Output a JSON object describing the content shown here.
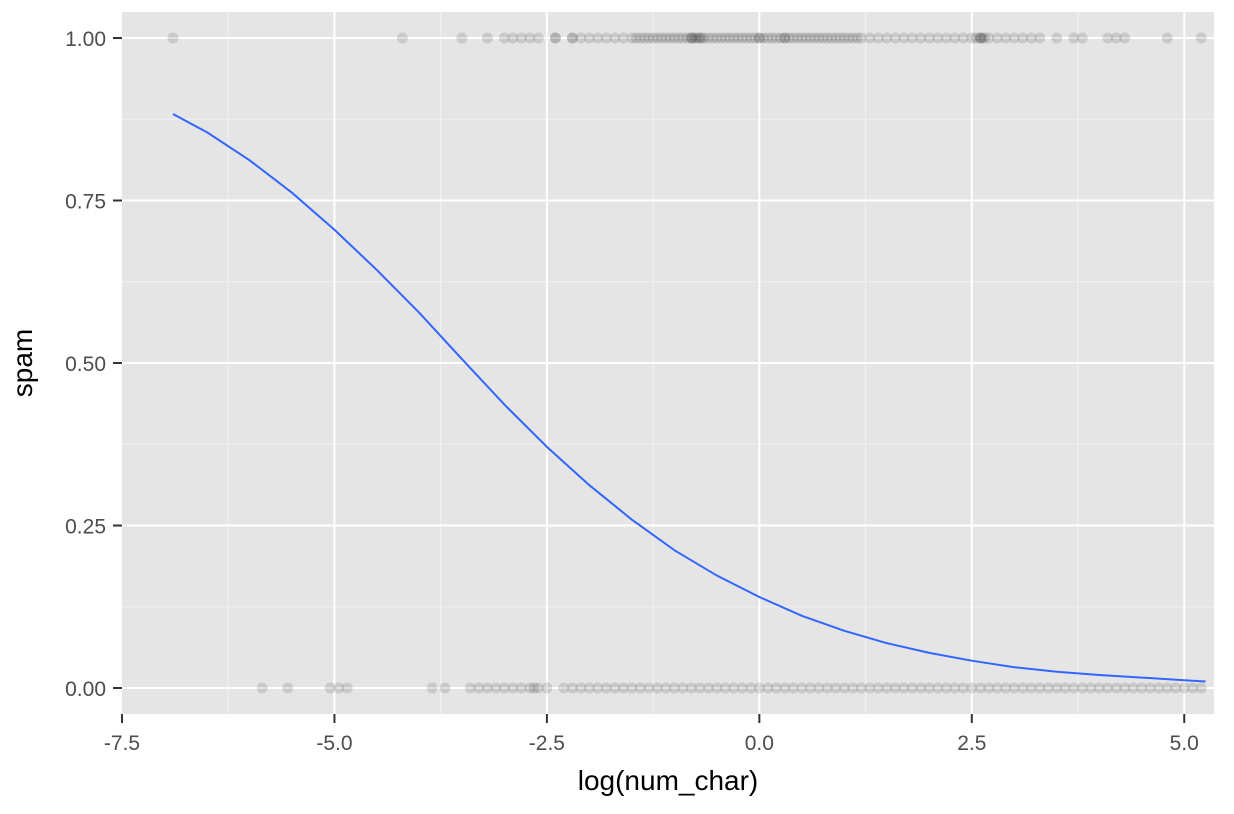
{
  "chart_data": {
    "type": "scatter",
    "title": "",
    "xlabel": "log(num_char)",
    "ylabel": "spam",
    "xlim": [
      -7.5,
      5.35
    ],
    "ylim": [
      -0.04,
      1.04
    ],
    "x_ticks": [
      -7.5,
      -5.0,
      -2.5,
      0.0,
      2.5,
      5.0
    ],
    "x_tick_labels": [
      "-7.5",
      "-5.0",
      "-2.5",
      "0.0",
      "2.5",
      "5.0"
    ],
    "y_ticks": [
      0.0,
      0.25,
      0.5,
      0.75,
      1.0
    ],
    "y_tick_labels": [
      "0.00",
      "0.25",
      "0.50",
      "0.75",
      "1.00"
    ],
    "grid": true,
    "panel_background": "#e5e5e5",
    "grid_color": "#ffffff",
    "point_color": "#000000",
    "point_alpha": 0.12,
    "curve_color": "#3366ff",
    "points_spam_1": [
      -6.9,
      -4.2,
      -3.5,
      -3.2,
      -3.0,
      -2.9,
      -2.8,
      -2.7,
      -2.6,
      -2.4,
      -2.4,
      -2.2,
      -2.2,
      -2.1,
      -2.0,
      -1.9,
      -1.8,
      -1.7,
      -1.6,
      -1.5,
      -1.45,
      -1.4,
      -1.35,
      -1.3,
      -1.25,
      -1.2,
      -1.15,
      -1.1,
      -1.05,
      -1.0,
      -0.95,
      -0.9,
      -0.85,
      -0.8,
      -0.8,
      -0.78,
      -0.75,
      -0.72,
      -0.7,
      -0.68,
      -0.65,
      -0.6,
      -0.55,
      -0.5,
      -0.45,
      -0.4,
      -0.35,
      -0.3,
      -0.25,
      -0.2,
      -0.15,
      -0.1,
      -0.05,
      0.0,
      0.0,
      0.05,
      0.1,
      0.15,
      0.2,
      0.25,
      0.3,
      0.3,
      0.35,
      0.4,
      0.45,
      0.5,
      0.55,
      0.6,
      0.65,
      0.7,
      0.75,
      0.8,
      0.85,
      0.9,
      0.95,
      1.0,
      1.05,
      1.1,
      1.15,
      1.2,
      1.3,
      1.4,
      1.5,
      1.6,
      1.7,
      1.8,
      1.9,
      2.0,
      2.1,
      2.2,
      2.3,
      2.4,
      2.5,
      2.55,
      2.6,
      2.6,
      2.62,
      2.65,
      2.7,
      2.8,
      2.9,
      3.0,
      3.1,
      3.2,
      3.3,
      3.5,
      3.7,
      3.8,
      4.1,
      4.2,
      4.3,
      4.8,
      5.2
    ],
    "points_spam_0": [
      -5.85,
      -5.55,
      -5.05,
      -4.95,
      -4.85,
      -3.85,
      -3.7,
      -3.4,
      -3.3,
      -3.2,
      -3.1,
      -3.0,
      -2.9,
      -2.8,
      -2.7,
      -2.65,
      -2.6,
      -2.5,
      -2.3,
      -2.2,
      -2.1,
      -2.0,
      -1.9,
      -1.8,
      -1.7,
      -1.6,
      -1.5,
      -1.4,
      -1.3,
      -1.2,
      -1.1,
      -1.0,
      -0.9,
      -0.8,
      -0.7,
      -0.6,
      -0.5,
      -0.4,
      -0.3,
      -0.2,
      -0.1,
      0.0,
      0.1,
      0.2,
      0.3,
      0.4,
      0.5,
      0.6,
      0.7,
      0.8,
      0.9,
      1.0,
      1.1,
      1.2,
      1.3,
      1.4,
      1.5,
      1.6,
      1.7,
      1.8,
      1.9,
      2.0,
      2.1,
      2.2,
      2.3,
      2.4,
      2.5,
      2.6,
      2.7,
      2.8,
      2.9,
      3.0,
      3.1,
      3.2,
      3.3,
      3.4,
      3.5,
      3.6,
      3.7,
      3.8,
      3.9,
      4.0,
      4.1,
      4.2,
      4.3,
      4.4,
      4.5,
      4.6,
      4.7,
      4.8,
      4.9,
      5.0,
      5.1,
      5.2
    ],
    "curve": {
      "label": "",
      "x": [
        -6.9,
        -6.5,
        -6.0,
        -5.5,
        -5.0,
        -4.5,
        -4.0,
        -3.5,
        -3.0,
        -2.5,
        -2.0,
        -1.5,
        -1.0,
        -0.5,
        0.0,
        0.5,
        1.0,
        1.5,
        2.0,
        2.5,
        3.0,
        3.5,
        4.0,
        4.5,
        5.0,
        5.25
      ],
      "y": [
        0.883,
        0.855,
        0.812,
        0.762,
        0.705,
        0.643,
        0.577,
        0.506,
        0.436,
        0.371,
        0.312,
        0.259,
        0.212,
        0.173,
        0.14,
        0.111,
        0.088,
        0.069,
        0.054,
        0.042,
        0.032,
        0.025,
        0.02,
        0.016,
        0.012,
        0.01
      ]
    }
  }
}
